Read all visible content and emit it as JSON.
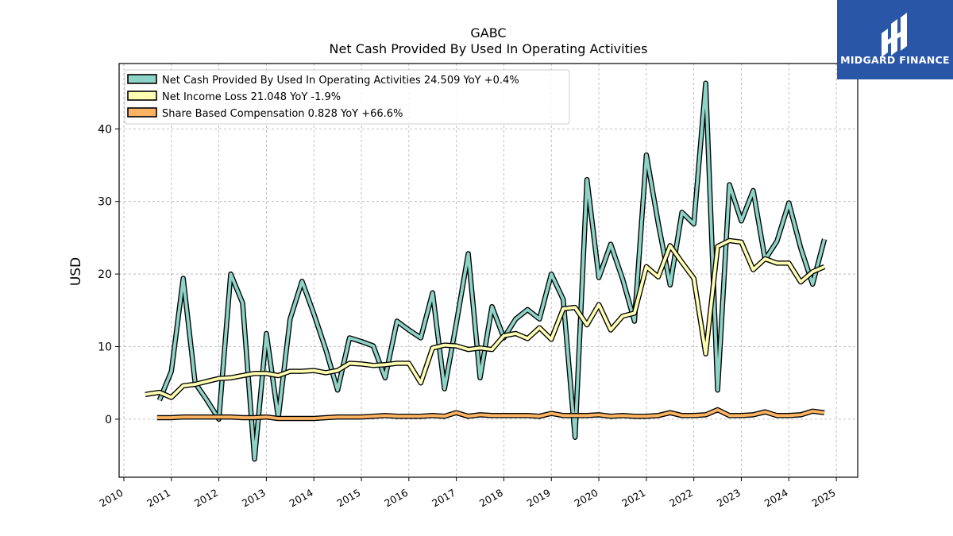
{
  "chart_data": {
    "type": "line",
    "title": "GABC",
    "subtitle": "Net Cash Provided By Used In Operating Activities",
    "xlabel": "",
    "ylabel": "USD",
    "xlim": [
      2009.9,
      2025.45
    ],
    "ylim": [
      -8,
      49
    ],
    "xticks": [
      "2010",
      "2011",
      "2012",
      "2013",
      "2014",
      "2015",
      "2016",
      "2017",
      "2018",
      "2019",
      "2020",
      "2021",
      "2022",
      "2023",
      "2024",
      "2025"
    ],
    "yticks": [
      0,
      10,
      20,
      30,
      40
    ],
    "grid": true,
    "legend_position": "top-left",
    "series": [
      {
        "name": "Net Cash Provided By Used In Operating Activities  24.509 YoY +0.4%",
        "color": "#8dd3c7",
        "points": [
          [
            2010.75,
            2.6
          ],
          [
            2011.0,
            6.6
          ],
          [
            2011.25,
            19.4
          ],
          [
            2011.5,
            5.0
          ],
          [
            2011.75,
            2.6
          ],
          [
            2012.0,
            0.0
          ],
          [
            2012.25,
            20.0
          ],
          [
            2012.5,
            16.0
          ],
          [
            2012.75,
            -5.5
          ],
          [
            2013.0,
            11.8
          ],
          [
            2013.25,
            0.2
          ],
          [
            2013.5,
            13.8
          ],
          [
            2013.75,
            19.0
          ],
          [
            2014.0,
            14.5
          ],
          [
            2014.25,
            9.6
          ],
          [
            2014.5,
            4.0
          ],
          [
            2014.75,
            11.2
          ],
          [
            2015.0,
            10.7
          ],
          [
            2015.25,
            10.1
          ],
          [
            2015.5,
            5.7
          ],
          [
            2015.75,
            13.5
          ],
          [
            2016.0,
            12.3
          ],
          [
            2016.25,
            11.2
          ],
          [
            2016.5,
            17.4
          ],
          [
            2016.75,
            4.2
          ],
          [
            2017.0,
            13.2
          ],
          [
            2017.25,
            22.8
          ],
          [
            2017.5,
            5.7
          ],
          [
            2017.75,
            15.5
          ],
          [
            2018.0,
            11.2
          ],
          [
            2018.25,
            13.8
          ],
          [
            2018.5,
            15.1
          ],
          [
            2018.75,
            13.8
          ],
          [
            2019.0,
            20.0
          ],
          [
            2019.25,
            16.5
          ],
          [
            2019.5,
            -2.5
          ],
          [
            2019.75,
            33.0
          ],
          [
            2020.0,
            19.5
          ],
          [
            2020.25,
            24.1
          ],
          [
            2020.5,
            19.3
          ],
          [
            2020.75,
            13.5
          ],
          [
            2021.0,
            36.4
          ],
          [
            2021.25,
            27.0
          ],
          [
            2021.5,
            18.5
          ],
          [
            2021.75,
            28.5
          ],
          [
            2022.0,
            26.9
          ],
          [
            2022.25,
            46.3
          ],
          [
            2022.5,
            4.0
          ],
          [
            2022.75,
            32.3
          ],
          [
            2023.0,
            27.3
          ],
          [
            2023.25,
            31.5
          ],
          [
            2023.5,
            22.0
          ],
          [
            2023.75,
            24.5
          ],
          [
            2024.0,
            29.8
          ],
          [
            2024.25,
            23.6
          ],
          [
            2024.5,
            18.6
          ],
          [
            2024.75,
            24.8
          ]
        ]
      },
      {
        "name": "Net Income Loss  21.048 YoY -1.9%",
        "color": "#ffffb3",
        "points": [
          [
            2010.45,
            3.4
          ],
          [
            2010.75,
            3.7
          ],
          [
            2011.0,
            3.0
          ],
          [
            2011.25,
            4.6
          ],
          [
            2011.5,
            4.8
          ],
          [
            2011.75,
            5.2
          ],
          [
            2012.0,
            5.6
          ],
          [
            2012.25,
            5.7
          ],
          [
            2012.5,
            6.0
          ],
          [
            2012.75,
            6.3
          ],
          [
            2013.0,
            6.3
          ],
          [
            2013.25,
            6.0
          ],
          [
            2013.5,
            6.6
          ],
          [
            2013.75,
            6.6
          ],
          [
            2014.0,
            6.7
          ],
          [
            2014.25,
            6.4
          ],
          [
            2014.5,
            6.7
          ],
          [
            2014.75,
            7.7
          ],
          [
            2015.0,
            7.6
          ],
          [
            2015.25,
            7.4
          ],
          [
            2015.5,
            7.5
          ],
          [
            2015.75,
            7.7
          ],
          [
            2016.0,
            7.7
          ],
          [
            2016.25,
            5.0
          ],
          [
            2016.5,
            9.8
          ],
          [
            2016.75,
            10.2
          ],
          [
            2017.0,
            10.1
          ],
          [
            2017.25,
            9.6
          ],
          [
            2017.5,
            9.8
          ],
          [
            2017.75,
            9.6
          ],
          [
            2018.0,
            11.5
          ],
          [
            2018.25,
            11.8
          ],
          [
            2018.5,
            11.1
          ],
          [
            2018.75,
            12.6
          ],
          [
            2019.0,
            11.0
          ],
          [
            2019.25,
            15.2
          ],
          [
            2019.5,
            15.4
          ],
          [
            2019.75,
            13.0
          ],
          [
            2020.0,
            15.8
          ],
          [
            2020.25,
            12.3
          ],
          [
            2020.5,
            14.2
          ],
          [
            2020.75,
            14.6
          ],
          [
            2021.0,
            21.0
          ],
          [
            2021.25,
            19.6
          ],
          [
            2021.5,
            23.9
          ],
          [
            2021.75,
            21.6
          ],
          [
            2022.0,
            19.4
          ],
          [
            2022.25,
            9.0
          ],
          [
            2022.5,
            23.8
          ],
          [
            2022.75,
            24.6
          ],
          [
            2023.0,
            24.4
          ],
          [
            2023.25,
            20.6
          ],
          [
            2023.5,
            22.1
          ],
          [
            2023.75,
            21.5
          ],
          [
            2024.0,
            21.5
          ],
          [
            2024.25,
            18.9
          ],
          [
            2024.5,
            20.3
          ],
          [
            2024.75,
            21.0
          ]
        ]
      },
      {
        "name": "Share Based Compensation  0.828 YoY +66.6%",
        "color": "#fdb462",
        "points": [
          [
            2010.7,
            0.2
          ],
          [
            2011.0,
            0.2
          ],
          [
            2011.25,
            0.3
          ],
          [
            2011.5,
            0.3
          ],
          [
            2011.75,
            0.3
          ],
          [
            2012.0,
            0.3
          ],
          [
            2012.25,
            0.3
          ],
          [
            2012.5,
            0.2
          ],
          [
            2012.75,
            0.2
          ],
          [
            2013.0,
            0.3
          ],
          [
            2013.25,
            0.1
          ],
          [
            2013.5,
            0.1
          ],
          [
            2013.75,
            0.1
          ],
          [
            2014.0,
            0.1
          ],
          [
            2014.25,
            0.2
          ],
          [
            2014.5,
            0.3
          ],
          [
            2014.75,
            0.3
          ],
          [
            2015.0,
            0.3
          ],
          [
            2015.25,
            0.4
          ],
          [
            2015.5,
            0.5
          ],
          [
            2015.75,
            0.4
          ],
          [
            2016.0,
            0.4
          ],
          [
            2016.25,
            0.4
          ],
          [
            2016.5,
            0.5
          ],
          [
            2016.75,
            0.4
          ],
          [
            2017.0,
            0.9
          ],
          [
            2017.25,
            0.4
          ],
          [
            2017.5,
            0.6
          ],
          [
            2017.75,
            0.5
          ],
          [
            2018.0,
            0.5
          ],
          [
            2018.25,
            0.5
          ],
          [
            2018.5,
            0.5
          ],
          [
            2018.75,
            0.4
          ],
          [
            2019.0,
            0.8
          ],
          [
            2019.25,
            0.5
          ],
          [
            2019.5,
            0.5
          ],
          [
            2019.75,
            0.5
          ],
          [
            2020.0,
            0.6
          ],
          [
            2020.25,
            0.4
          ],
          [
            2020.5,
            0.5
          ],
          [
            2020.75,
            0.4
          ],
          [
            2021.0,
            0.4
          ],
          [
            2021.25,
            0.5
          ],
          [
            2021.5,
            0.9
          ],
          [
            2021.75,
            0.5
          ],
          [
            2022.0,
            0.5
          ],
          [
            2022.25,
            0.6
          ],
          [
            2022.5,
            1.3
          ],
          [
            2022.75,
            0.5
          ],
          [
            2023.0,
            0.5
          ],
          [
            2023.25,
            0.6
          ],
          [
            2023.5,
            1.0
          ],
          [
            2023.75,
            0.5
          ],
          [
            2024.0,
            0.5
          ],
          [
            2024.25,
            0.6
          ],
          [
            2024.5,
            1.1
          ],
          [
            2024.75,
            0.9
          ]
        ]
      }
    ]
  },
  "logo": {
    "text": "MIDGARD FINANCE",
    "background": "#2a56a8"
  }
}
